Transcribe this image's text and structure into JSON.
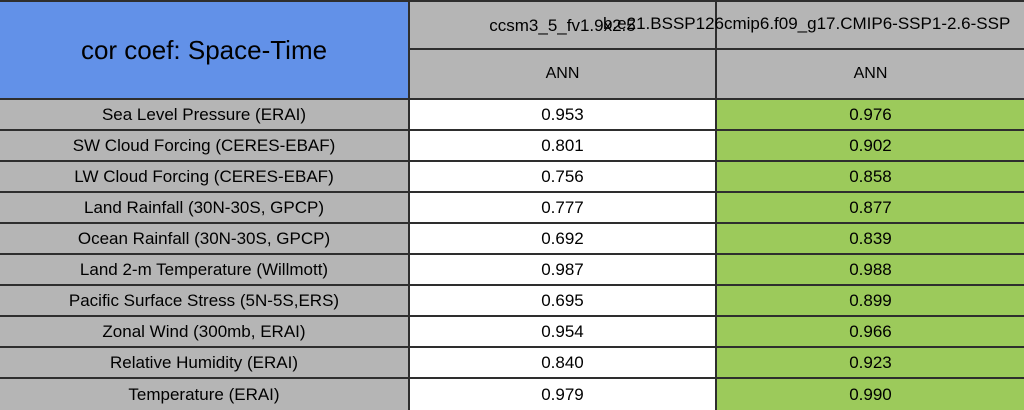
{
  "table": {
    "title": "cor coef: Space-Time",
    "columns": [
      {
        "model": "ccsm3_5_fv1.9x2.5",
        "season": "ANN"
      },
      {
        "model": "b.e21.BSSP126cmip6.f09_g17.CMIP6-SSP1-2.6-SSP",
        "season": "ANN"
      }
    ],
    "rows": [
      {
        "label": "Sea Level Pressure (ERAI)",
        "values": [
          "0.953",
          "0.976"
        ]
      },
      {
        "label": "SW Cloud Forcing (CERES-EBAF)",
        "values": [
          "0.801",
          "0.902"
        ]
      },
      {
        "label": "LW Cloud Forcing (CERES-EBAF)",
        "values": [
          "0.756",
          "0.858"
        ]
      },
      {
        "label": "Land Rainfall (30N-30S, GPCP)",
        "values": [
          "0.777",
          "0.877"
        ]
      },
      {
        "label": "Ocean Rainfall (30N-30S, GPCP)",
        "values": [
          "0.692",
          "0.839"
        ]
      },
      {
        "label": "Land 2-m Temperature (Willmott)",
        "values": [
          "0.987",
          "0.988"
        ]
      },
      {
        "label": "Pacific Surface Stress (5N-5S,ERS)",
        "values": [
          "0.695",
          "0.899"
        ]
      },
      {
        "label": "Zonal Wind (300mb, ERAI)",
        "values": [
          "0.954",
          "0.966"
        ]
      },
      {
        "label": "Relative Humidity (ERAI)",
        "values": [
          "0.840",
          "0.923"
        ]
      },
      {
        "label": "Temperature (ERAI)",
        "values": [
          "0.979",
          "0.990"
        ]
      }
    ],
    "colors": {
      "title_bg": "#6291e8",
      "header_bg": "#b5b5b5",
      "label_bg": "#b5b5b5",
      "highlight_bg": "#9cca5b",
      "plain_bg": "#ffffff",
      "border": "#2e2e2e"
    }
  },
  "chart_data": {
    "type": "table",
    "title": "cor coef: Space-Time",
    "season": "ANN",
    "categories": [
      "Sea Level Pressure (ERAI)",
      "SW Cloud Forcing (CERES-EBAF)",
      "LW Cloud Forcing (CERES-EBAF)",
      "Land Rainfall (30N-30S, GPCP)",
      "Ocean Rainfall (30N-30S, GPCP)",
      "Land 2-m Temperature (Willmott)",
      "Pacific Surface Stress (5N-5S,ERS)",
      "Zonal Wind (300mb, ERAI)",
      "Relative Humidity (ERAI)",
      "Temperature (ERAI)"
    ],
    "series": [
      {
        "name": "ccsm3_5_fv1.9x2.5",
        "values": [
          0.953,
          0.801,
          0.756,
          0.777,
          0.692,
          0.987,
          0.695,
          0.954,
          0.84,
          0.979
        ]
      },
      {
        "name": "b.e21.BSSP126cmip6.f09_g17.CMIP6-SSP1-2.6-SSP",
        "values": [
          0.976,
          0.902,
          0.858,
          0.877,
          0.839,
          0.988,
          0.899,
          0.966,
          0.923,
          0.99
        ]
      }
    ],
    "highlight_column": "b.e21.BSSP126cmip6.f09_g17.CMIP6-SSP1-2.6-SSP"
  }
}
